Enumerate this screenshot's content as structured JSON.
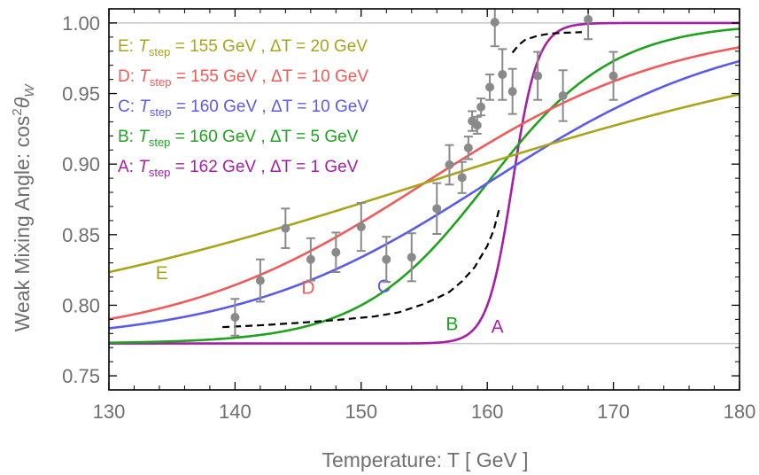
{
  "chart_data": {
    "type": "line",
    "xlabel": "Temperature: T [ GeV ]",
    "ylabel": "Weak Mixing Angle: cos²θ_W",
    "ylabel_prefix": "Weak Mixing Angle: cos",
    "ylabel_sup": "2",
    "ylabel_theta": "θ",
    "ylabel_sub": "W",
    "xlim": [
      130,
      180
    ],
    "ylim": [
      0.74,
      1.01
    ],
    "x_ticks": [
      130,
      140,
      150,
      160,
      170,
      180
    ],
    "y_ticks": [
      0.75,
      0.8,
      0.85,
      0.9,
      0.95,
      1.0
    ],
    "x_tick_labels": [
      "130",
      "140",
      "150",
      "160",
      "170",
      "180"
    ],
    "y_tick_labels": [
      "0.75",
      "0.80",
      "0.85",
      "0.90",
      "0.95",
      "1.00"
    ],
    "reference_lines": [
      1.0,
      0.7729
    ],
    "reference_color": "#c8c8c8",
    "series": [
      {
        "name": "A",
        "label": "A",
        "legend_prefix": "A: ",
        "legend_T": "T",
        "legend_sub": "step",
        "legend_rest": " = 162 GeV , ΔT = 1 GeV",
        "T_step": 162,
        "delta_T": 1,
        "color": "#a61ea6",
        "label_pos": [
          160.8,
          0.7805
        ]
      },
      {
        "name": "B",
        "label": "B",
        "legend_prefix": "B: ",
        "legend_T": "T",
        "legend_sub": "step",
        "legend_rest": " = 160 GeV , ΔT = 5 GeV",
        "T_step": 160,
        "delta_T": 5,
        "color": "#1fa31f",
        "label_pos": [
          157.2,
          0.7825
        ]
      },
      {
        "name": "C",
        "label": "C",
        "legend_prefix": "C: ",
        "legend_T": "T",
        "legend_sub": "step",
        "legend_rest": " = 160 GeV , ΔT = 10 GeV",
        "T_step": 160,
        "delta_T": 10,
        "color": "#5b5bea",
        "label_pos": [
          151.8,
          0.809
        ]
      },
      {
        "name": "D",
        "label": "D",
        "legend_prefix": "D: ",
        "legend_T": "T",
        "legend_sub": "step",
        "legend_rest": " = 155 GeV , ΔT = 10 GeV",
        "T_step": 155,
        "delta_T": 10,
        "color": "#f05a5a",
        "label_pos": [
          145.8,
          0.808
        ]
      },
      {
        "name": "E",
        "label": "E",
        "legend_prefix": "E: ",
        "legend_T": "T",
        "legend_sub": "step",
        "legend_rest": " = 155 GeV , ΔT = 20 GeV",
        "T_step": 155,
        "delta_T": 20,
        "color": "#a8a51c",
        "label_pos": [
          134.2,
          0.8185
        ]
      }
    ],
    "dashed_curve": {
      "color": "#000000",
      "segment1": [
        [
          139.0,
          0.7845
        ],
        [
          142,
          0.7858
        ],
        [
          145,
          0.7875
        ],
        [
          148,
          0.7895
        ],
        [
          151,
          0.792
        ],
        [
          153,
          0.795
        ],
        [
          155,
          0.801
        ],
        [
          156,
          0.805
        ],
        [
          157,
          0.8095
        ],
        [
          158,
          0.817
        ],
        [
          159,
          0.827
        ],
        [
          160,
          0.842
        ],
        [
          160.5,
          0.853
        ],
        [
          161,
          0.87
        ]
      ],
      "segment2": [
        [
          162,
          0.979
        ],
        [
          162.5,
          0.9845
        ],
        [
          163,
          0.988
        ],
        [
          164,
          0.991
        ],
        [
          165,
          0.9925
        ],
        [
          166,
          0.993
        ],
        [
          167.5,
          0.9935
        ]
      ]
    },
    "data_points": [
      {
        "x": 140,
        "y": 0.7915,
        "err": 0.013
      },
      {
        "x": 142,
        "y": 0.8175,
        "err": 0.015
      },
      {
        "x": 144,
        "y": 0.8545,
        "err": 0.014
      },
      {
        "x": 146,
        "y": 0.8325,
        "err": 0.015
      },
      {
        "x": 148,
        "y": 0.8375,
        "err": 0.014
      },
      {
        "x": 150,
        "y": 0.8555,
        "err": 0.017
      },
      {
        "x": 152,
        "y": 0.8325,
        "err": 0.016
      },
      {
        "x": 154,
        "y": 0.834,
        "err": 0.017
      },
      {
        "x": 156,
        "y": 0.8685,
        "err": 0.018
      },
      {
        "x": 157,
        "y": 0.8995,
        "err": 0.014
      },
      {
        "x": 158,
        "y": 0.8905,
        "err": 0.011
      },
      {
        "x": 158.5,
        "y": 0.9115,
        "err": 0.008
      },
      {
        "x": 158.8,
        "y": 0.9305,
        "err": 0.007
      },
      {
        "x": 159.2,
        "y": 0.9275,
        "err": 0.006
      },
      {
        "x": 159.5,
        "y": 0.9405,
        "err": 0.006
      },
      {
        "x": 160.2,
        "y": 0.9545,
        "err": 0.009
      },
      {
        "x": 160.6,
        "y": 1.0005,
        "err": 0.017
      },
      {
        "x": 161.2,
        "y": 0.9635,
        "err": 0.018
      },
      {
        "x": 162,
        "y": 0.9515,
        "err": 0.016
      },
      {
        "x": 164,
        "y": 0.9625,
        "err": 0.017
      },
      {
        "x": 166,
        "y": 0.9485,
        "err": 0.018
      },
      {
        "x": 168,
        "y": 1.0025,
        "err": 0.014
      },
      {
        "x": 170,
        "y": 0.9625,
        "err": 0.017
      }
    ],
    "data_point_color": "#8a8a8a",
    "y_low": 0.7729,
    "y_high": 1.0,
    "legend_placement": "top-left",
    "grid": false
  }
}
